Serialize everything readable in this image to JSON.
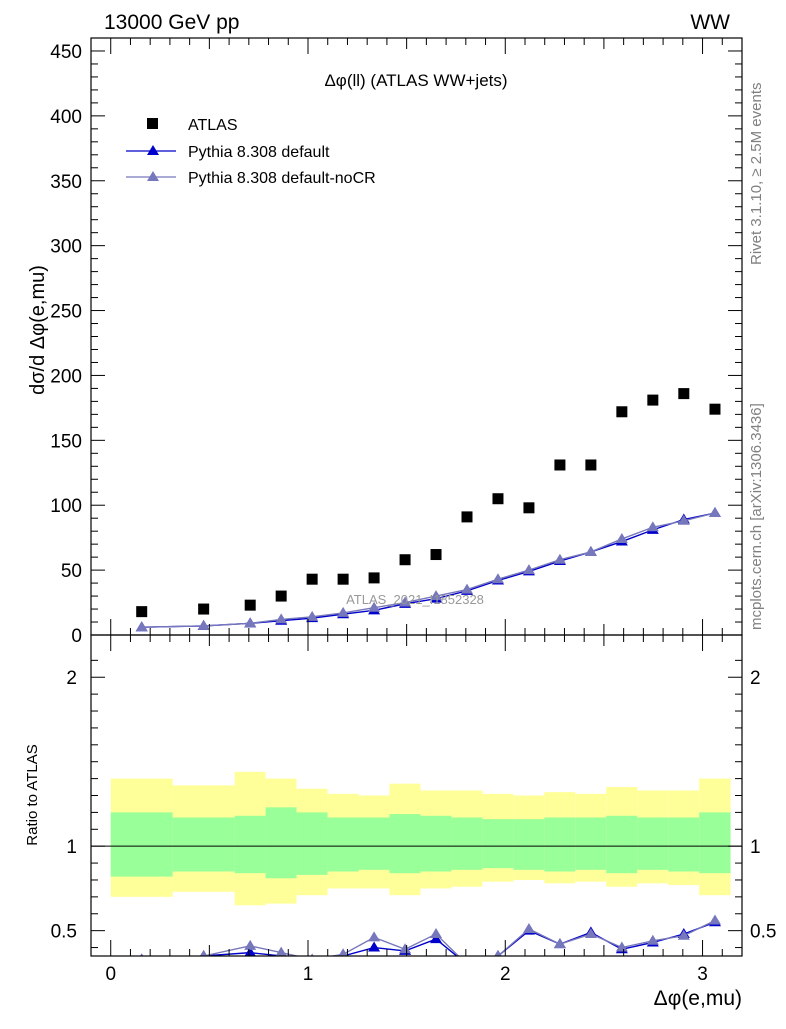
{
  "header": {
    "left": "13000 GeV pp",
    "right": "WW"
  },
  "side_labels": {
    "rivet": "Rivet 3.1.10, ≥ 2.5M events",
    "mcplots": "mcplots.cern.ch [arXiv:1306.3436]"
  },
  "watermark": "ATLAS_2021_I1852328",
  "colors": {
    "atlas": "#000000",
    "default": "#0000cc",
    "noCR": "#7777bb",
    "band_inner": "#99ff99",
    "band_outer": "#ffff99"
  },
  "chart_data": [
    {
      "type": "scatter",
      "title": "Δφ(ll) (ATLAS WW+jets)",
      "xlabel": "Δφ(e,mu)",
      "ylabel": "dσ/d Δφ(e,mu)",
      "xlim": [
        -0.1,
        3.2
      ],
      "ylim": [
        0,
        460
      ],
      "yticks": [
        0,
        50,
        100,
        150,
        200,
        250,
        300,
        350,
        400,
        450
      ],
      "xticks": [
        0,
        1,
        2,
        3
      ],
      "legend_position": "top-left",
      "x": [
        0.157,
        0.471,
        0.707,
        0.864,
        1.021,
        1.178,
        1.335,
        1.492,
        1.649,
        1.806,
        1.963,
        2.12,
        2.277,
        2.434,
        2.591,
        2.748,
        2.905,
        3.063
      ],
      "series": [
        {
          "name": "ATLAS",
          "marker": "square",
          "values": [
            18,
            20,
            23,
            30,
            43,
            43,
            44,
            58,
            62,
            91,
            105,
            98,
            131,
            131,
            172,
            181,
            186,
            174
          ]
        },
        {
          "name": "Pythia 8.308 default",
          "marker": "triangle",
          "values": [
            6,
            7,
            9,
            11,
            13,
            16,
            19,
            24,
            28,
            34,
            42,
            49,
            57,
            64,
            72,
            81,
            89,
            94
          ]
        },
        {
          "name": "Pythia 8.308 default-noCR",
          "marker": "triangle",
          "values": [
            6,
            7,
            9,
            12,
            14,
            17,
            21,
            25,
            30,
            35,
            43,
            50,
            58,
            64,
            74,
            83,
            88,
            94
          ]
        }
      ]
    },
    {
      "type": "line",
      "ylabel": "Ratio to ATLAS",
      "xlabel": "Δφ(e,mu)",
      "xlim": [
        -0.1,
        3.2
      ],
      "ylim": [
        0.35,
        2.25
      ],
      "yticks": [
        0.5,
        1,
        2
      ],
      "bin_edges": [
        0.0,
        0.314,
        0.628,
        0.785,
        0.942,
        1.099,
        1.256,
        1.413,
        1.57,
        1.727,
        1.884,
        2.041,
        2.198,
        2.355,
        2.512,
        2.669,
        2.826,
        2.983,
        3.142
      ],
      "band_inner": [
        [
          0.82,
          1.2
        ],
        [
          0.85,
          1.17
        ],
        [
          0.84,
          1.18
        ],
        [
          0.81,
          1.23
        ],
        [
          0.83,
          1.2
        ],
        [
          0.85,
          1.17
        ],
        [
          0.86,
          1.17
        ],
        [
          0.84,
          1.19
        ],
        [
          0.85,
          1.18
        ],
        [
          0.86,
          1.17
        ],
        [
          0.87,
          1.16
        ],
        [
          0.86,
          1.16
        ],
        [
          0.85,
          1.17
        ],
        [
          0.86,
          1.17
        ],
        [
          0.84,
          1.18
        ],
        [
          0.86,
          1.17
        ],
        [
          0.85,
          1.17
        ],
        [
          0.84,
          1.2
        ]
      ],
      "band_outer": [
        [
          0.7,
          1.4
        ],
        [
          0.73,
          1.36
        ],
        [
          0.65,
          1.44
        ],
        [
          0.66,
          1.4
        ],
        [
          0.71,
          1.34
        ],
        [
          0.75,
          1.31
        ],
        [
          0.75,
          1.3
        ],
        [
          0.71,
          1.37
        ],
        [
          0.75,
          1.33
        ],
        [
          0.76,
          1.33
        ],
        [
          0.79,
          1.31
        ],
        [
          0.8,
          1.3
        ],
        [
          0.78,
          1.32
        ],
        [
          0.79,
          1.31
        ],
        [
          0.76,
          1.35
        ],
        [
          0.78,
          1.33
        ],
        [
          0.77,
          1.33
        ],
        [
          0.71,
          1.4
        ]
      ],
      "x": [
        0.157,
        0.471,
        0.707,
        0.864,
        1.021,
        1.178,
        1.335,
        1.492,
        1.649,
        1.806,
        1.963,
        2.12,
        2.277,
        2.434,
        2.591,
        2.748,
        2.905,
        3.063
      ],
      "series": [
        {
          "name": "Pythia 8.308 default",
          "values": [
            0.33,
            0.35,
            0.37,
            0.35,
            0.3,
            0.35,
            0.4,
            0.38,
            0.45,
            0.3,
            0.35,
            0.5,
            0.42,
            0.49,
            0.39,
            0.43,
            0.48,
            0.55
          ]
        },
        {
          "name": "Pythia 8.308 default-noCR",
          "values": [
            0.33,
            0.35,
            0.41,
            0.37,
            0.33,
            0.36,
            0.46,
            0.39,
            0.48,
            0.3,
            0.35,
            0.51,
            0.42,
            0.48,
            0.4,
            0.44,
            0.47,
            0.56
          ]
        }
      ]
    }
  ]
}
